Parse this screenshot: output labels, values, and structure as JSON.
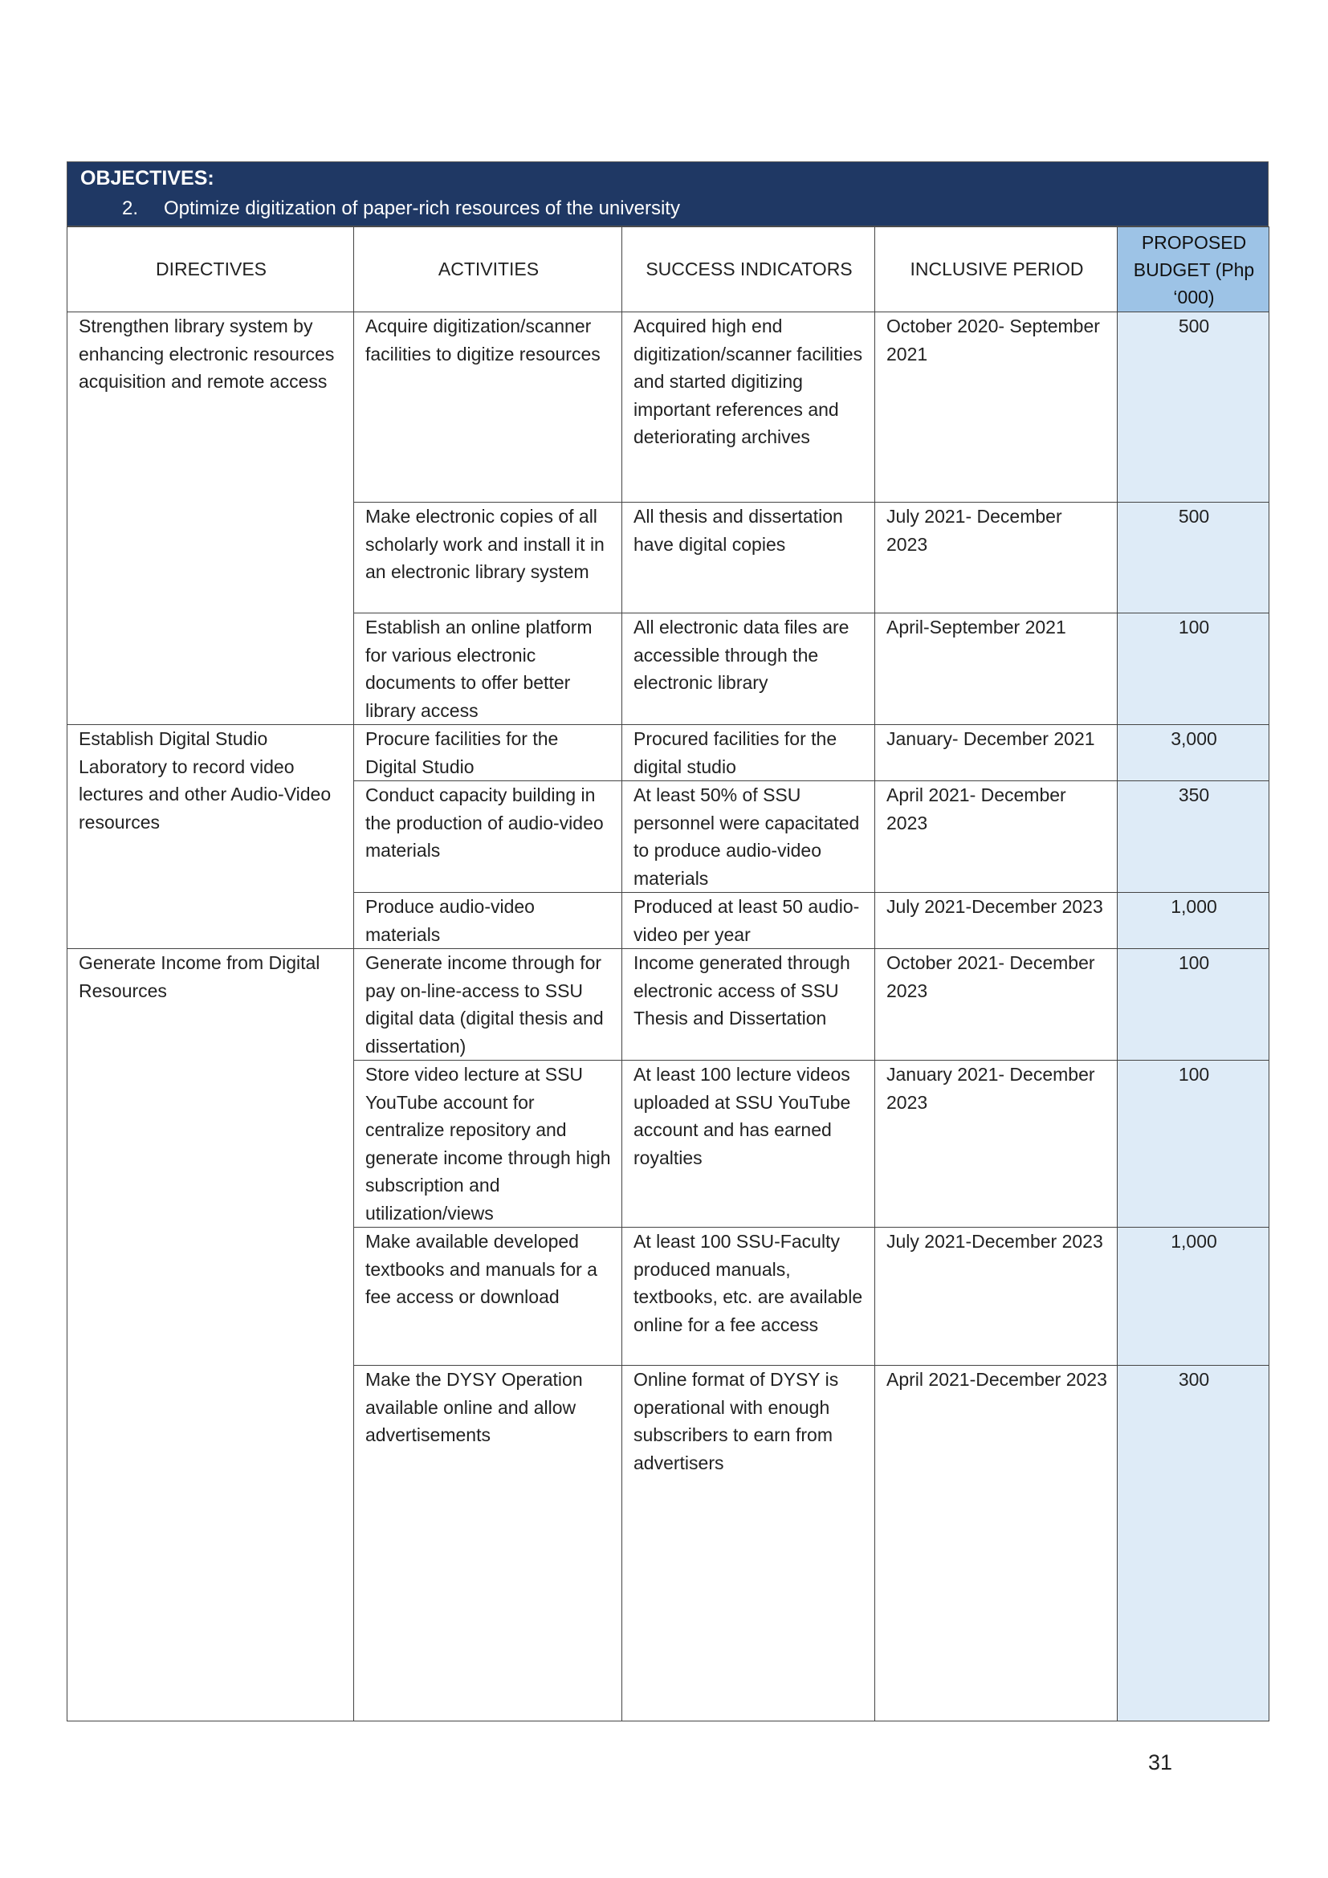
{
  "objectives": {
    "heading": "OBJECTIVES:",
    "number": "2.",
    "text": "Optimize digitization of paper-rich resources of the university"
  },
  "colors": {
    "header_bg": "#1f3864",
    "budget_header_bg": "#9dc3e6",
    "budget_cell_bg": "#deebf7"
  },
  "columns": [
    "DIRECTIVES",
    "ACTIVITIES",
    "SUCCESS INDICATORS",
    "INCLUSIVE PERIOD",
    "PROPOSED BUDGET (Php ‘000)"
  ],
  "groups": [
    {
      "directive": "Strengthen library system by enhancing electronic resources acquisition and remote access",
      "rows": [
        {
          "activity": "Acquire digitization/scanner facilities to digitize resources",
          "indicator": "Acquired high end digitization/scanner facilities and started digitizing important references and deteriorating archives",
          "period": "October 2020- September 2021",
          "budget": "500"
        },
        {
          "activity": "Make electronic copies of all scholarly work and install it in an electronic library system",
          "indicator": "All thesis and dissertation have digital copies",
          "period": "July 2021- December 2023",
          "budget": "500"
        },
        {
          "activity": "Establish an online platform for various electronic documents to offer better library access",
          "indicator": "All electronic data files are accessible through the electronic library",
          "period": "April-September 2021",
          "budget": "100"
        }
      ]
    },
    {
      "directive": "Establish Digital Studio Laboratory to record video lectures and other Audio-Video resources",
      "rows": [
        {
          "activity": "Procure facilities for the Digital Studio",
          "indicator": "Procured facilities for the digital studio",
          "period": "January- December 2021",
          "budget": "3,000"
        },
        {
          "activity": "Conduct capacity building in the production of audio-video materials",
          "indicator": "At least 50% of SSU personnel were capacitated to produce audio-video materials",
          "period": "April 2021- December 2023",
          "budget": "350"
        },
        {
          "activity": "Produce audio-video materials",
          "indicator": "Produced at least 50 audio-video per year",
          "period": "July 2021-December 2023",
          "budget": "1,000"
        }
      ]
    },
    {
      "directive": "Generate Income from Digital Resources",
      "rows": [
        {
          "activity": "Generate income through for pay on-line-access to SSU digital data (digital thesis and dissertation)",
          "indicator": "Income generated through electronic access of SSU Thesis and Dissertation",
          "period": "October 2021- December 2023",
          "budget": "100"
        },
        {
          "activity": "Store video lecture at SSU YouTube account for centralize repository and generate income through high subscription and utilization/views",
          "indicator": "At least 100 lecture videos uploaded at SSU YouTube account and has earned royalties",
          "period": "January 2021- December 2023",
          "budget": "100"
        },
        {
          "activity": "Make available developed textbooks and manuals for a fee access or download",
          "indicator": "At least 100 SSU-Faculty produced manuals, textbooks, etc. are available online for a fee access",
          "period": "July 2021-December 2023",
          "budget": "1,000"
        },
        {
          "activity": "Make the DYSY Operation available online and allow advertisements",
          "indicator": "Online format of DYSY is operational with enough subscribers to earn from advertisers",
          "period": "April 2021-December 2023",
          "budget": "300"
        }
      ]
    }
  ],
  "page_number": "31"
}
